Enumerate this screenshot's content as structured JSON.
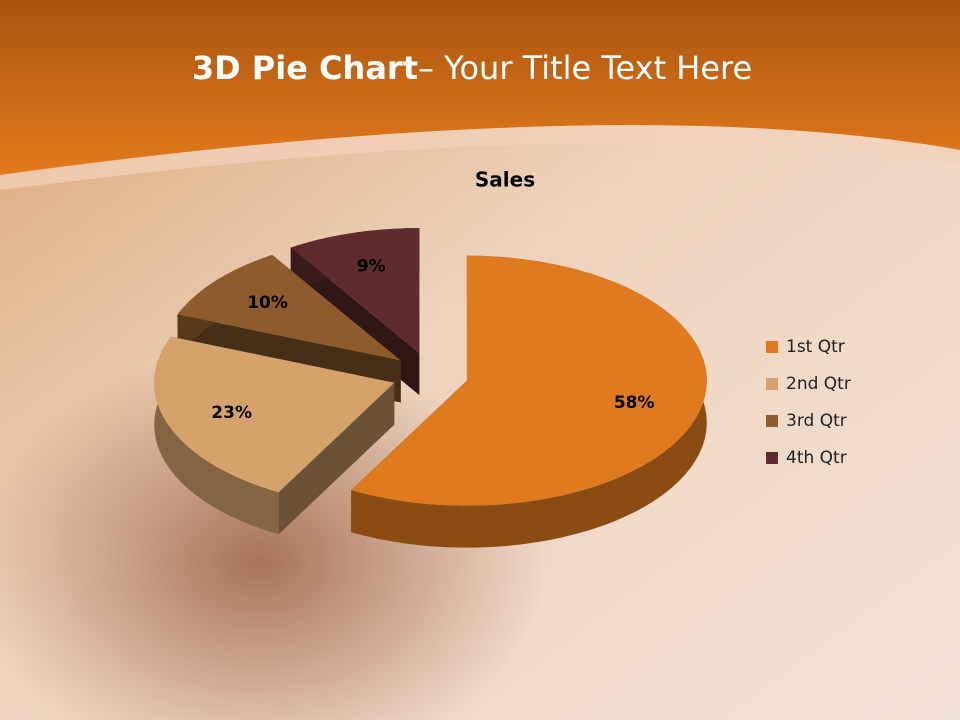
{
  "slide": {
    "title_bold": "3D Pie Chart",
    "title_rest": "– Your Title Text Here"
  },
  "chart_data": {
    "type": "pie3d",
    "title": "Sales",
    "categories": [
      "1st Qtr",
      "2nd Qtr",
      "3rd Qtr",
      "4th Qtr"
    ],
    "values": [
      58,
      23,
      10,
      9
    ],
    "value_labels": [
      "58%",
      "23%",
      "10%",
      "9%"
    ],
    "colors": [
      "#e07a1f",
      "#d6a26c",
      "#8e5c2c",
      "#5e2b2e"
    ],
    "legend": "right"
  }
}
